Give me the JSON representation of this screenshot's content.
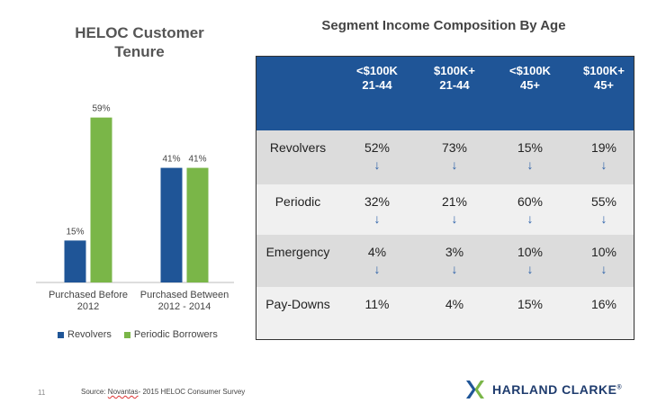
{
  "left_chart": {
    "title_line1": "HELOC Customer",
    "title_line2": "Tenure"
  },
  "chart_data": {
    "type": "bar",
    "categories": [
      "Purchased Before 2012",
      "Purchased Between 2012 - 2014"
    ],
    "category_lines": [
      [
        "Purchased Before",
        "2012"
      ],
      [
        "Purchased Between",
        "2012 - 2014"
      ]
    ],
    "series": [
      {
        "name": "Revolvers",
        "values": [
          15,
          41
        ],
        "labels": [
          "15%",
          "41%"
        ],
        "color": "#1f5597"
      },
      {
        "name": "Periodic Borrowers",
        "values": [
          59,
          41
        ],
        "labels": [
          "59%",
          "41%"
        ],
        "color": "#7ab648"
      }
    ],
    "title": "HELOC Customer Tenure",
    "xlabel": "",
    "ylabel": "",
    "ylim": [
      0,
      65
    ],
    "grid": false,
    "legend": "bottom"
  },
  "table": {
    "title": "Segment Income Composition By Age",
    "columns": [
      {
        "line1": "<$100K",
        "line2": "21-44"
      },
      {
        "line1": "$100K+",
        "line2": "21-44"
      },
      {
        "line1": "<$100K",
        "line2": "45+"
      },
      {
        "line1": "$100K+",
        "line2": "45+"
      }
    ],
    "rows": [
      {
        "label": "Revolvers",
        "values": [
          "52%",
          "73%",
          "15%",
          "19%"
        ]
      },
      {
        "label": "Periodic",
        "values": [
          "32%",
          "21%",
          "60%",
          "55%"
        ]
      },
      {
        "label": "Emergency",
        "values": [
          "4%",
          "3%",
          "10%",
          "10%"
        ]
      },
      {
        "label": "Pay-Downs",
        "values": [
          "11%",
          "4%",
          "15%",
          "16%"
        ]
      }
    ],
    "arrow_icon": "down-arrow-icon",
    "header_color": "#1f5597",
    "arrow_color": "#2a5fa8"
  },
  "footer": {
    "page_number": "11",
    "source_prefix": "Source: ",
    "source_name": "Novantas",
    "source_suffix": "- 2015 HELOC Consumer Survey",
    "brand_name": "HARLAND CLARKE",
    "brand_mark": "®",
    "brand_colors": [
      "#1f5597",
      "#7ab648"
    ]
  }
}
